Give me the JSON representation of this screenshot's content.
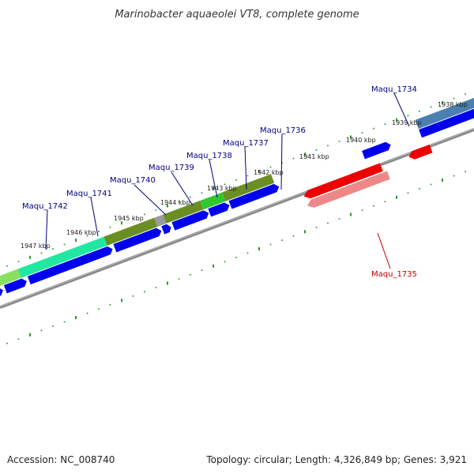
{
  "title": "Marinobacter aquaeolei VT8, complete genome",
  "footer": {
    "accession": "Accession: NC_008740",
    "summary": "Topology: circular; Length: 4,326,849 bp; Genes: 3,921"
  },
  "colors": {
    "forward_gene": "#0000ee",
    "reverse_gene": "#ee0000",
    "reverse_feature": "#ee8888",
    "backbone": "#808080",
    "tick": "#1a8a1a",
    "label_forward": "#000080",
    "label_reverse": "#c00000"
  },
  "kbp_labels": [
    "1938 kbp",
    "1939 kbp",
    "1940 kbp",
    "1941 kbp",
    "1942 kbp",
    "1943 kbp",
    "1944 kbp",
    "1945 kbp",
    "1946 kbp",
    "1947 kbp"
  ],
  "gene_labels": [
    {
      "name": "Maqu_1734",
      "strand": "forward"
    },
    {
      "name": "Maqu_1735",
      "strand": "reverse"
    },
    {
      "name": "Maqu_1736",
      "strand": "forward"
    },
    {
      "name": "Maqu_1737",
      "strand": "forward"
    },
    {
      "name": "Maqu_1738",
      "strand": "forward"
    },
    {
      "name": "Maqu_1739",
      "strand": "forward"
    },
    {
      "name": "Maqu_1740",
      "strand": "forward"
    },
    {
      "name": "Maqu_1741",
      "strand": "forward"
    },
    {
      "name": "Maqu_1742",
      "strand": "forward"
    }
  ]
}
